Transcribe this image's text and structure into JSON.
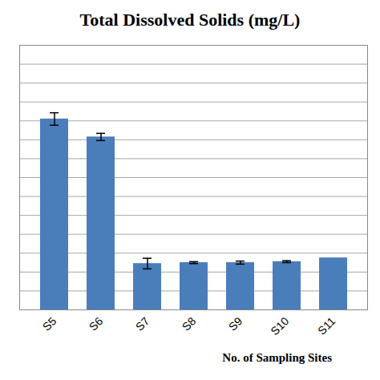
{
  "chart_data": {
    "type": "bar",
    "title": "Total Dissolved Solids (mg/L)",
    "x_label": "No. of Sampling Sites",
    "categories": [
      "S5",
      "S6",
      "S7",
      "S8",
      "S9",
      "S10",
      "S11"
    ],
    "values": [
      1010,
      915,
      245,
      250,
      250,
      255,
      275
    ],
    "error": [
      33,
      19,
      28,
      5,
      8,
      5,
      0
    ],
    "color": "#4a7ebb",
    "ylim": [
      0,
      1400
    ],
    "yticks": [
      0,
      100,
      200,
      300,
      400,
      500,
      600,
      700,
      800,
      900,
      1000,
      1100,
      1200,
      1300,
      1400
    ],
    "grid": true,
    "tick_labels": "x"
  }
}
